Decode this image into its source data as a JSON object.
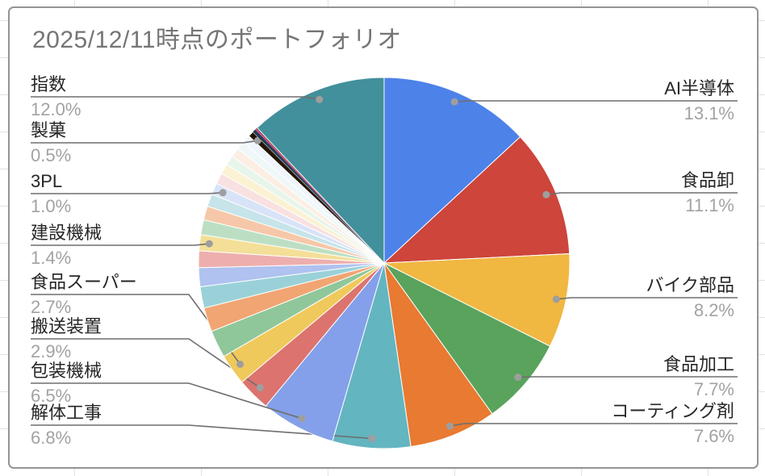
{
  "chart_data": {
    "type": "pie",
    "title": "2025/12/11時点のポートフォリオ",
    "unit": "%",
    "legend_position": "none",
    "start_angle_deg": 0,
    "direction": "clockwise",
    "label_text_color": "#262626",
    "percent_text_color": "#A2A2A2",
    "callout_line_color": "#6E6E6E",
    "callout_dot_color": "#9E9E9E",
    "slices": [
      {
        "label": "AI半導体",
        "value": 13.1,
        "percent_label": "13.1%",
        "color": "#4D82E9",
        "callout": "right"
      },
      {
        "label": "食品卸",
        "value": 11.1,
        "percent_label": "11.1%",
        "color": "#CD453B",
        "callout": "right"
      },
      {
        "label": "バイク部品",
        "value": 8.2,
        "percent_label": "8.2%",
        "color": "#F0B741",
        "callout": "right"
      },
      {
        "label": "食品加工",
        "value": 7.7,
        "percent_label": "7.7%",
        "color": "#5AA35C",
        "callout": "right"
      },
      {
        "label": "コーティング剤",
        "value": 7.6,
        "percent_label": "7.6%",
        "color": "#E87A31",
        "callout": "right"
      },
      {
        "label": "解体工事",
        "value": 6.8,
        "percent_label": "6.8%",
        "color": "#63B5C0",
        "callout": "left"
      },
      {
        "label": "包装機械",
        "value": 6.5,
        "percent_label": "6.5%",
        "color": "#84A0EA",
        "callout": "left"
      },
      {
        "label": "搬送装置",
        "value": 2.9,
        "percent_label": "2.9%",
        "color": "#DC736E",
        "callout": "left"
      },
      {
        "label": "食品スーパー",
        "value": 2.7,
        "percent_label": "2.7%",
        "color": "#F0C95C",
        "callout": "left"
      },
      {
        "label": null,
        "value": 2.4,
        "color": "#90C79A",
        "callout": null
      },
      {
        "label": null,
        "value": 2.1,
        "color": "#F1A573",
        "callout": null
      },
      {
        "label": null,
        "value": 1.85,
        "color": "#9AD1D8",
        "callout": null
      },
      {
        "label": null,
        "value": 1.65,
        "color": "#AFC2F0",
        "callout": null
      },
      {
        "label": null,
        "value": 1.45,
        "color": "#EDAFAD",
        "callout": null
      },
      {
        "label": "建設機械",
        "value": 1.4,
        "percent_label": "1.4%",
        "color": "#F4DF99",
        "callout": "left"
      },
      {
        "label": null,
        "value": 1.3,
        "color": "#BCDFC4",
        "callout": null
      },
      {
        "label": null,
        "value": 1.2,
        "color": "#F6C8A9",
        "callout": null
      },
      {
        "label": null,
        "value": 1.1,
        "color": "#C6E4E9",
        "callout": null
      },
      {
        "label": "3PL",
        "value": 1.0,
        "percent_label": "1.0%",
        "color": "#D8E3F8",
        "callout": "left"
      },
      {
        "label": null,
        "value": 0.95,
        "color": "#F8E1E0",
        "callout": null
      },
      {
        "label": null,
        "value": 0.9,
        "color": "#FBF2D3",
        "callout": null
      },
      {
        "label": null,
        "value": 0.85,
        "color": "#E8F5EB",
        "callout": null
      },
      {
        "label": null,
        "value": 0.8,
        "color": "#FCEEE3",
        "callout": null
      },
      {
        "label": null,
        "value": 0.75,
        "color": "#EFF8F9",
        "callout": null
      },
      {
        "label": null,
        "value": 0.7,
        "color": "#EFF4FD",
        "callout": null
      },
      {
        "label": "製菓",
        "value": 0.5,
        "percent_label": "0.5%",
        "color": "#231505",
        "callout": "left"
      },
      {
        "label": null,
        "value": 0.12,
        "color": "#16363C",
        "callout": null
      },
      {
        "label": null,
        "value": 0.1,
        "color": "#1C2B63",
        "callout": null
      },
      {
        "label": null,
        "value": 0.08,
        "color": "#2A3A75",
        "callout": null
      },
      {
        "label": null,
        "value": 0.12,
        "color": "#EF4C55",
        "callout": null
      },
      {
        "label": null,
        "value": 0.08,
        "color": "#10194C",
        "callout": null
      },
      {
        "label": "指数",
        "value": 12.0,
        "percent_label": "12.0%",
        "color": "#42909B",
        "callout": "left"
      }
    ]
  }
}
